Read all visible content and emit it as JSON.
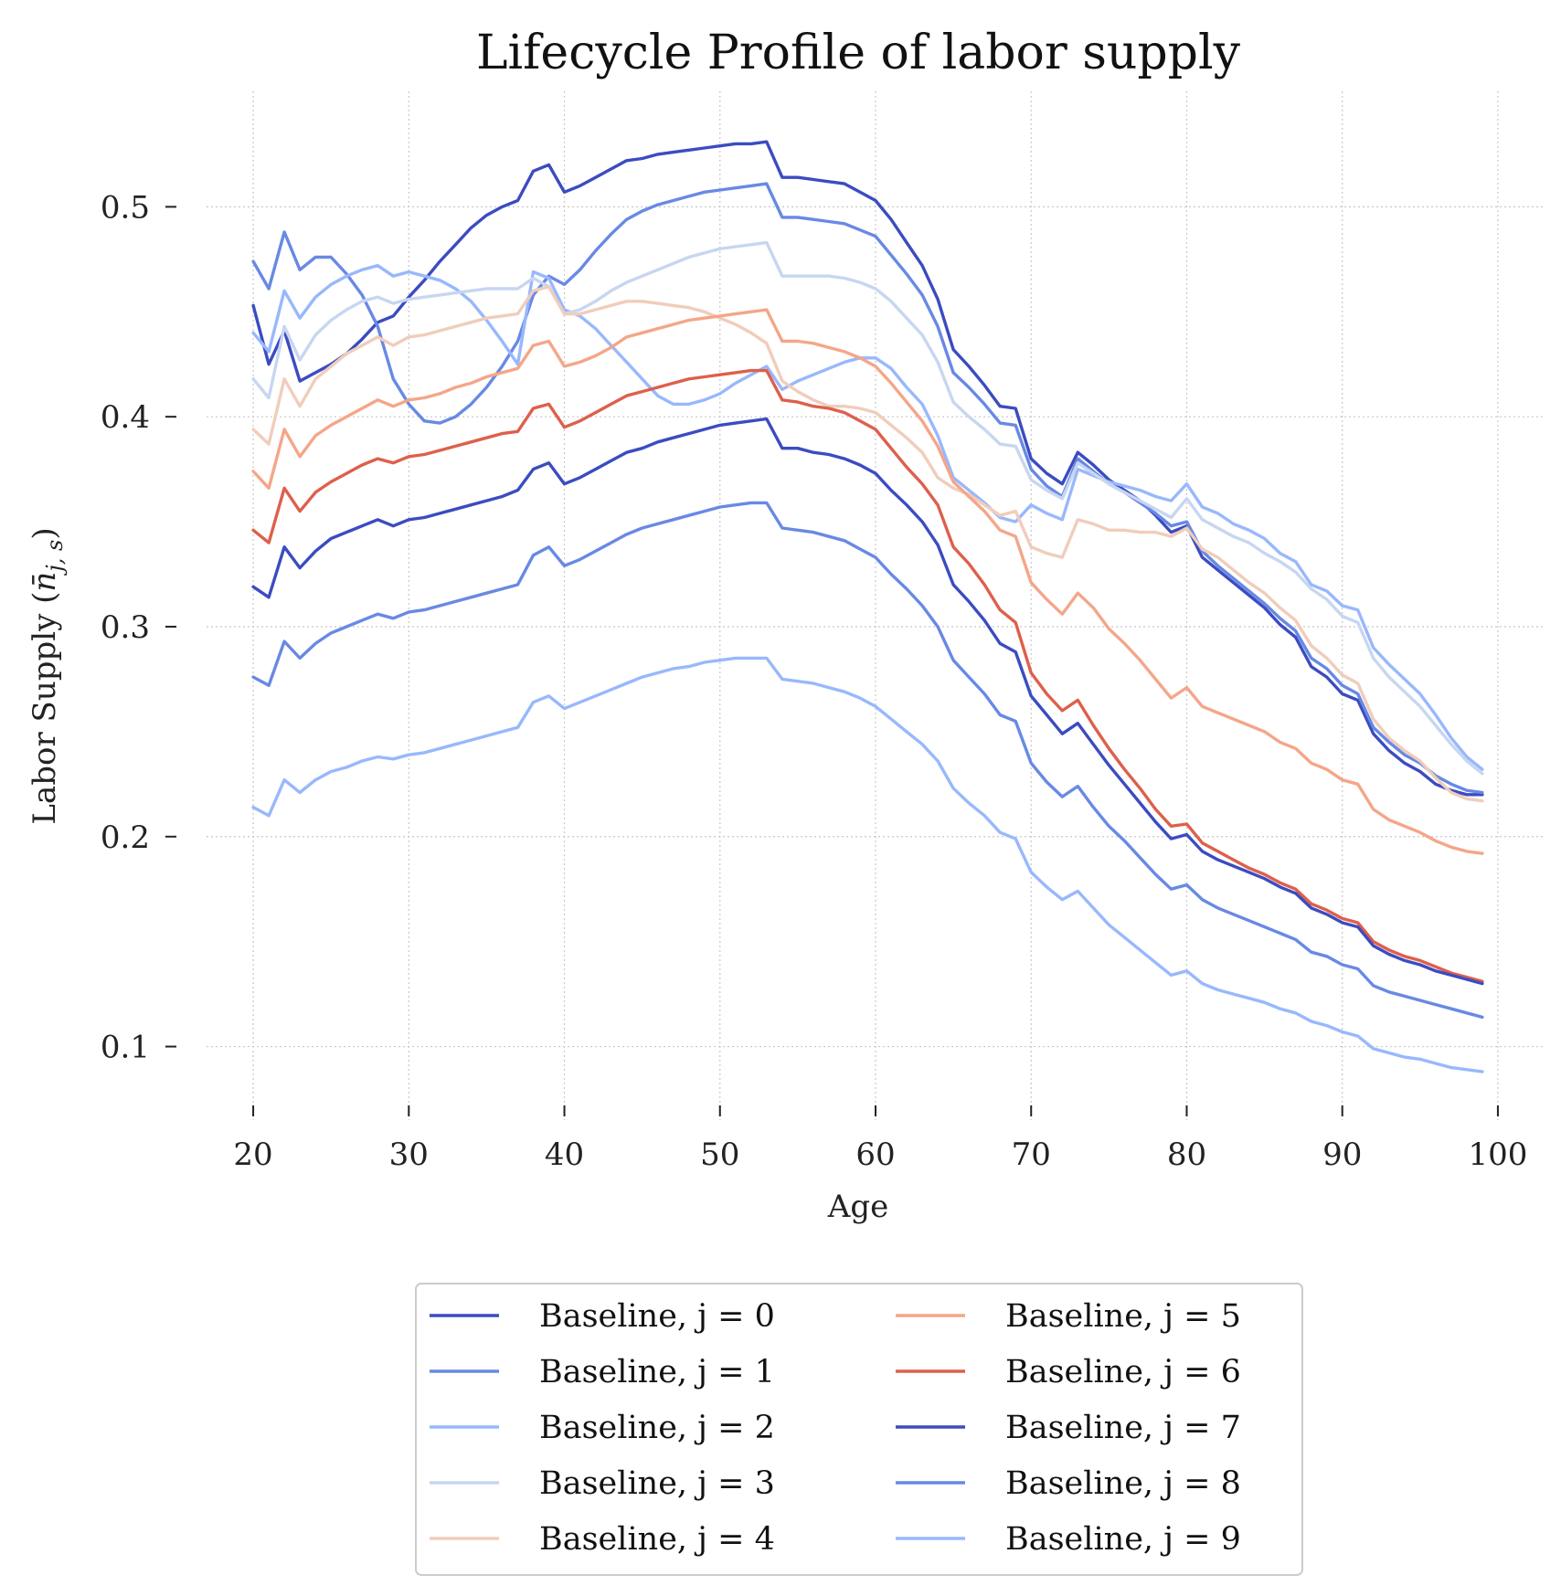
{
  "chart_data": {
    "type": "line",
    "title": "Lifecycle Profile of labor supply",
    "xlabel": "Age",
    "ylabel_main": "Labor Supply (",
    "ylabel_sym": "n̄",
    "ylabel_sub": "j, s",
    "ylabel_close": ")",
    "xlim": [
      17,
      103
    ],
    "ylim": [
      0.065,
      0.555
    ],
    "xticks": [
      20,
      30,
      40,
      50,
      60,
      70,
      80,
      90,
      100
    ],
    "yticks": [
      0.1,
      0.2,
      0.3,
      0.4,
      0.5
    ],
    "grid": true,
    "legend_position": "below",
    "x": [
      20,
      21,
      22,
      23,
      24,
      25,
      26,
      27,
      28,
      29,
      30,
      31,
      32,
      33,
      34,
      35,
      36,
      37,
      38,
      39,
      40,
      41,
      42,
      43,
      44,
      45,
      46,
      47,
      48,
      49,
      50,
      51,
      52,
      53,
      54,
      55,
      56,
      57,
      58,
      59,
      60,
      61,
      62,
      63,
      64,
      65,
      66,
      67,
      68,
      69,
      70,
      71,
      72,
      73,
      74,
      75,
      76,
      77,
      78,
      79,
      80,
      81,
      82,
      83,
      84,
      85,
      86,
      87,
      88,
      89,
      90,
      91,
      92,
      93,
      94,
      95,
      96,
      97,
      98,
      99
    ],
    "series": [
      {
        "name": "Baseline, j = 0",
        "color": "#3b4cc0",
        "values": [
          0.453,
          0.425,
          0.441,
          0.417,
          0.421,
          0.425,
          0.43,
          0.437,
          0.445,
          0.448,
          0.457,
          0.465,
          0.474,
          0.482,
          0.49,
          0.496,
          0.5,
          0.503,
          0.517,
          0.52,
          0.507,
          0.51,
          0.514,
          0.518,
          0.522,
          0.523,
          0.525,
          0.526,
          0.527,
          0.528,
          0.529,
          0.53,
          0.53,
          0.531,
          0.514,
          0.514,
          0.513,
          0.512,
          0.511,
          0.507,
          0.503,
          0.494,
          0.483,
          0.472,
          0.456,
          0.432,
          0.424,
          0.415,
          0.405,
          0.404,
          0.38,
          0.373,
          0.368,
          0.383,
          0.377,
          0.37,
          0.365,
          0.36,
          0.353,
          0.345,
          0.348,
          0.333,
          0.327,
          0.321,
          0.315,
          0.309,
          0.301,
          0.295,
          0.281,
          0.276,
          0.268,
          0.265,
          0.249,
          0.241,
          0.235,
          0.231,
          0.225,
          0.222,
          0.22,
          0.22
        ]
      },
      {
        "name": "Baseline, j = 1",
        "color": "#6889e4",
        "values": [
          0.474,
          0.461,
          0.488,
          0.47,
          0.476,
          0.476,
          0.468,
          0.458,
          0.443,
          0.418,
          0.406,
          0.398,
          0.397,
          0.4,
          0.406,
          0.414,
          0.424,
          0.436,
          0.458,
          0.467,
          0.463,
          0.47,
          0.479,
          0.487,
          0.494,
          0.498,
          0.501,
          0.503,
          0.505,
          0.507,
          0.508,
          0.509,
          0.51,
          0.511,
          0.495,
          0.495,
          0.494,
          0.493,
          0.492,
          0.489,
          0.486,
          0.477,
          0.468,
          0.458,
          0.443,
          0.421,
          0.414,
          0.406,
          0.397,
          0.396,
          0.375,
          0.367,
          0.362,
          0.38,
          0.374,
          0.368,
          0.364,
          0.359,
          0.354,
          0.348,
          0.35,
          0.336,
          0.329,
          0.323,
          0.317,
          0.311,
          0.304,
          0.298,
          0.285,
          0.28,
          0.272,
          0.268,
          0.252,
          0.245,
          0.239,
          0.235,
          0.229,
          0.225,
          0.222,
          0.221
        ]
      },
      {
        "name": "Baseline, j = 2",
        "color": "#98b8fd",
        "values": [
          0.44,
          0.431,
          0.46,
          0.447,
          0.457,
          0.463,
          0.467,
          0.47,
          0.472,
          0.467,
          0.469,
          0.467,
          0.465,
          0.461,
          0.455,
          0.446,
          0.436,
          0.425,
          0.469,
          0.466,
          0.451,
          0.448,
          0.442,
          0.434,
          0.426,
          0.418,
          0.41,
          0.406,
          0.406,
          0.408,
          0.411,
          0.416,
          0.42,
          0.424,
          0.413,
          0.417,
          0.42,
          0.423,
          0.426,
          0.428,
          0.428,
          0.423,
          0.414,
          0.406,
          0.391,
          0.371,
          0.365,
          0.359,
          0.352,
          0.35,
          0.358,
          0.354,
          0.351,
          0.375,
          0.372,
          0.369,
          0.367,
          0.365,
          0.362,
          0.36,
          0.368,
          0.357,
          0.354,
          0.349,
          0.346,
          0.342,
          0.335,
          0.331,
          0.32,
          0.317,
          0.31,
          0.308,
          0.29,
          0.282,
          0.275,
          0.268,
          0.258,
          0.247,
          0.238,
          0.232
        ]
      },
      {
        "name": "Baseline, j = 3",
        "color": "#c7d6f1",
        "values": [
          0.418,
          0.409,
          0.443,
          0.427,
          0.439,
          0.446,
          0.451,
          0.455,
          0.457,
          0.454,
          0.456,
          0.457,
          0.458,
          0.459,
          0.46,
          0.461,
          0.461,
          0.461,
          0.466,
          0.462,
          0.449,
          0.451,
          0.455,
          0.46,
          0.464,
          0.467,
          0.47,
          0.473,
          0.476,
          0.478,
          0.48,
          0.481,
          0.482,
          0.483,
          0.467,
          0.467,
          0.467,
          0.467,
          0.466,
          0.464,
          0.461,
          0.455,
          0.447,
          0.439,
          0.426,
          0.407,
          0.4,
          0.394,
          0.387,
          0.386,
          0.37,
          0.365,
          0.361,
          0.378,
          0.373,
          0.368,
          0.364,
          0.36,
          0.356,
          0.352,
          0.361,
          0.351,
          0.347,
          0.343,
          0.34,
          0.335,
          0.331,
          0.326,
          0.318,
          0.313,
          0.305,
          0.302,
          0.285,
          0.276,
          0.269,
          0.262,
          0.253,
          0.244,
          0.236,
          0.23
        ]
      },
      {
        "name": "Baseline, j = 4",
        "color": "#f0cdbb",
        "values": [
          0.394,
          0.387,
          0.418,
          0.405,
          0.418,
          0.424,
          0.43,
          0.434,
          0.438,
          0.434,
          0.438,
          0.439,
          0.441,
          0.443,
          0.445,
          0.447,
          0.448,
          0.449,
          0.46,
          0.462,
          0.449,
          0.449,
          0.451,
          0.453,
          0.455,
          0.455,
          0.454,
          0.453,
          0.452,
          0.45,
          0.447,
          0.444,
          0.44,
          0.435,
          0.417,
          0.412,
          0.408,
          0.405,
          0.405,
          0.404,
          0.402,
          0.396,
          0.39,
          0.383,
          0.371,
          0.366,
          0.363,
          0.358,
          0.353,
          0.355,
          0.338,
          0.335,
          0.333,
          0.351,
          0.349,
          0.346,
          0.346,
          0.345,
          0.345,
          0.343,
          0.347,
          0.337,
          0.333,
          0.327,
          0.321,
          0.316,
          0.309,
          0.303,
          0.291,
          0.285,
          0.277,
          0.273,
          0.256,
          0.247,
          0.241,
          0.236,
          0.228,
          0.221,
          0.218,
          0.217
        ]
      },
      {
        "name": "Baseline, j = 5",
        "color": "#f4a688",
        "values": [
          0.374,
          0.366,
          0.394,
          0.381,
          0.391,
          0.396,
          0.4,
          0.404,
          0.408,
          0.405,
          0.408,
          0.409,
          0.411,
          0.414,
          0.416,
          0.419,
          0.421,
          0.423,
          0.434,
          0.436,
          0.424,
          0.426,
          0.429,
          0.433,
          0.438,
          0.44,
          0.442,
          0.444,
          0.446,
          0.447,
          0.448,
          0.449,
          0.45,
          0.451,
          0.436,
          0.436,
          0.435,
          0.433,
          0.431,
          0.428,
          0.424,
          0.416,
          0.407,
          0.398,
          0.386,
          0.369,
          0.362,
          0.355,
          0.346,
          0.343,
          0.321,
          0.313,
          0.306,
          0.316,
          0.309,
          0.299,
          0.292,
          0.284,
          0.275,
          0.266,
          0.271,
          0.262,
          0.259,
          0.256,
          0.253,
          0.25,
          0.245,
          0.242,
          0.235,
          0.232,
          0.227,
          0.225,
          0.213,
          0.208,
          0.205,
          0.202,
          0.198,
          0.195,
          0.193,
          0.192
        ]
      },
      {
        "name": "Baseline, j = 6",
        "color": "#dd604c",
        "values": [
          0.346,
          0.34,
          0.366,
          0.355,
          0.364,
          0.369,
          0.373,
          0.377,
          0.38,
          0.378,
          0.381,
          0.382,
          0.384,
          0.386,
          0.388,
          0.39,
          0.392,
          0.393,
          0.404,
          0.406,
          0.395,
          0.398,
          0.402,
          0.406,
          0.41,
          0.412,
          0.414,
          0.416,
          0.418,
          0.419,
          0.42,
          0.421,
          0.422,
          0.422,
          0.408,
          0.407,
          0.405,
          0.404,
          0.402,
          0.398,
          0.394,
          0.385,
          0.376,
          0.368,
          0.358,
          0.338,
          0.33,
          0.32,
          0.308,
          0.302,
          0.278,
          0.268,
          0.26,
          0.265,
          0.253,
          0.242,
          0.232,
          0.223,
          0.213,
          0.205,
          0.206,
          0.197,
          0.193,
          0.189,
          0.185,
          0.182,
          0.178,
          0.175,
          0.168,
          0.165,
          0.161,
          0.159,
          0.15,
          0.146,
          0.143,
          0.141,
          0.138,
          0.135,
          0.133,
          0.131
        ]
      },
      {
        "name": "Baseline, j = 7",
        "color": "#3b4cc0",
        "values": [
          0.319,
          0.314,
          0.338,
          0.328,
          0.336,
          0.342,
          0.345,
          0.348,
          0.351,
          0.348,
          0.351,
          0.352,
          0.354,
          0.356,
          0.358,
          0.36,
          0.362,
          0.365,
          0.375,
          0.378,
          0.368,
          0.371,
          0.375,
          0.379,
          0.383,
          0.385,
          0.388,
          0.39,
          0.392,
          0.394,
          0.396,
          0.397,
          0.398,
          0.399,
          0.385,
          0.385,
          0.383,
          0.382,
          0.38,
          0.377,
          0.373,
          0.365,
          0.358,
          0.35,
          0.339,
          0.32,
          0.312,
          0.303,
          0.292,
          0.288,
          0.267,
          0.258,
          0.249,
          0.254,
          0.244,
          0.234,
          0.225,
          0.216,
          0.207,
          0.199,
          0.201,
          0.193,
          0.189,
          0.186,
          0.183,
          0.18,
          0.176,
          0.173,
          0.166,
          0.163,
          0.159,
          0.157,
          0.148,
          0.144,
          0.141,
          0.139,
          0.136,
          0.134,
          0.132,
          0.13
        ]
      },
      {
        "name": "Baseline, j = 8",
        "color": "#6889e4",
        "values": [
          0.276,
          0.272,
          0.293,
          0.285,
          0.292,
          0.297,
          0.3,
          0.303,
          0.306,
          0.304,
          0.307,
          0.308,
          0.31,
          0.312,
          0.314,
          0.316,
          0.318,
          0.32,
          0.334,
          0.338,
          0.329,
          0.332,
          0.336,
          0.34,
          0.344,
          0.347,
          0.349,
          0.351,
          0.353,
          0.355,
          0.357,
          0.358,
          0.359,
          0.359,
          0.347,
          0.346,
          0.345,
          0.343,
          0.341,
          0.337,
          0.333,
          0.325,
          0.318,
          0.31,
          0.3,
          0.284,
          0.276,
          0.268,
          0.258,
          0.255,
          0.235,
          0.226,
          0.219,
          0.224,
          0.214,
          0.205,
          0.198,
          0.19,
          0.182,
          0.175,
          0.177,
          0.17,
          0.166,
          0.163,
          0.16,
          0.157,
          0.154,
          0.151,
          0.145,
          0.143,
          0.139,
          0.137,
          0.129,
          0.126,
          0.124,
          0.122,
          0.12,
          0.118,
          0.116,
          0.114
        ]
      },
      {
        "name": "Baseline, j = 9",
        "color": "#98b8fd",
        "values": [
          0.214,
          0.21,
          0.227,
          0.221,
          0.227,
          0.231,
          0.233,
          0.236,
          0.238,
          0.237,
          0.239,
          0.24,
          0.242,
          0.244,
          0.246,
          0.248,
          0.25,
          0.252,
          0.264,
          0.267,
          0.261,
          0.264,
          0.267,
          0.27,
          0.273,
          0.276,
          0.278,
          0.28,
          0.281,
          0.283,
          0.284,
          0.285,
          0.285,
          0.285,
          0.275,
          0.274,
          0.273,
          0.271,
          0.269,
          0.266,
          0.262,
          0.256,
          0.25,
          0.244,
          0.236,
          0.223,
          0.216,
          0.21,
          0.202,
          0.199,
          0.183,
          0.176,
          0.17,
          0.174,
          0.166,
          0.158,
          0.152,
          0.146,
          0.14,
          0.134,
          0.136,
          0.13,
          0.127,
          0.125,
          0.123,
          0.121,
          0.118,
          0.116,
          0.112,
          0.11,
          0.107,
          0.105,
          0.099,
          0.097,
          0.095,
          0.094,
          0.092,
          0.09,
          0.089,
          0.088
        ]
      }
    ]
  }
}
